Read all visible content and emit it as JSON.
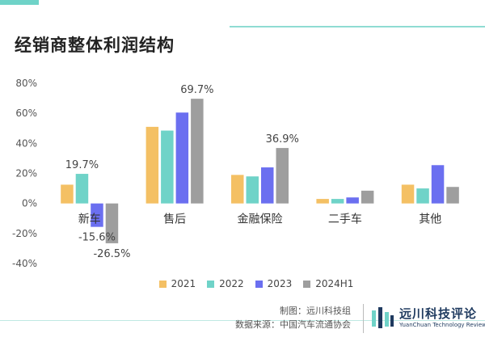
{
  "header": {
    "title": "经销商整体利润结构"
  },
  "chart_data": {
    "type": "bar",
    "categories": [
      "新车",
      "售后",
      "金融保险",
      "二手车",
      "其他"
    ],
    "series": [
      {
        "name": "2021",
        "color": "#f4c064",
        "values": [
          12.5,
          51,
          19,
          3,
          12.5
        ]
      },
      {
        "name": "2022",
        "color": "#6fd3c8",
        "values": [
          19.7,
          48.5,
          18,
          3,
          10
        ]
      },
      {
        "name": "2023",
        "color": "#6b6ff0",
        "values": [
          -15.6,
          60.5,
          24,
          4,
          25.5
        ]
      },
      {
        "name": "2024H1",
        "color": "#9e9e9e",
        "values": [
          -26.5,
          69.7,
          36.9,
          8.5,
          11
        ]
      }
    ],
    "data_labels": [
      {
        "series": 1,
        "category": 0,
        "text": "19.7%"
      },
      {
        "series": 2,
        "category": 0,
        "text": "-15.6%"
      },
      {
        "series": 3,
        "category": 0,
        "text": "-26.5%"
      },
      {
        "series": 3,
        "category": 1,
        "text": "69.7%"
      },
      {
        "series": 3,
        "category": 2,
        "text": "36.9%"
      }
    ],
    "yticks": [
      "80%",
      "60%",
      "40%",
      "20%",
      "0%",
      "-20%",
      "-40%"
    ],
    "ytick_values": [
      80,
      60,
      40,
      20,
      0,
      -20,
      -40
    ],
    "ylim": [
      -40,
      80
    ],
    "legend_position": "bottom",
    "grid": false
  },
  "footer": {
    "credit_maker": "制图：远川科技组",
    "credit_source": "数据来源：中国汽车流通协会",
    "logo_cn": "远川科技评论",
    "logo_en": "YuanChuan Technology Review"
  }
}
